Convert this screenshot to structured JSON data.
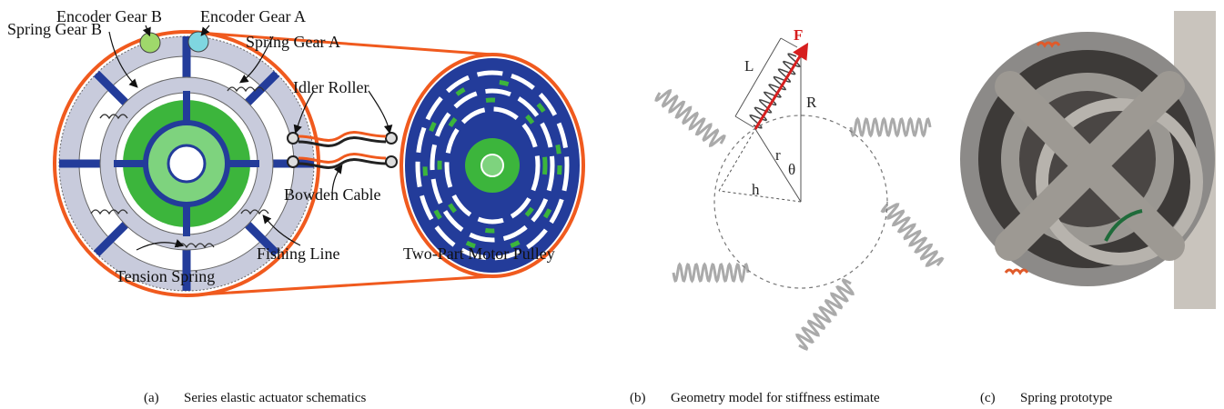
{
  "panels": [
    {
      "label": "(a)",
      "caption": "Series elastic actuator schematics",
      "annotations": [
        "Encoder Gear B",
        "Encoder Gear A",
        "Spring Gear B",
        "Spring Gear A",
        "Idler Roller",
        "Bowden Cable",
        "Fishing Line",
        "Tension Spring",
        "Two-Part Motor Pulley"
      ]
    },
    {
      "label": "(b)",
      "caption": "Geometry model for stiffness estimate",
      "annotations": [
        "F",
        "L",
        "R",
        "r",
        "θ",
        "h"
      ]
    },
    {
      "label": "(c)",
      "caption": "Spring prototype"
    }
  ]
}
